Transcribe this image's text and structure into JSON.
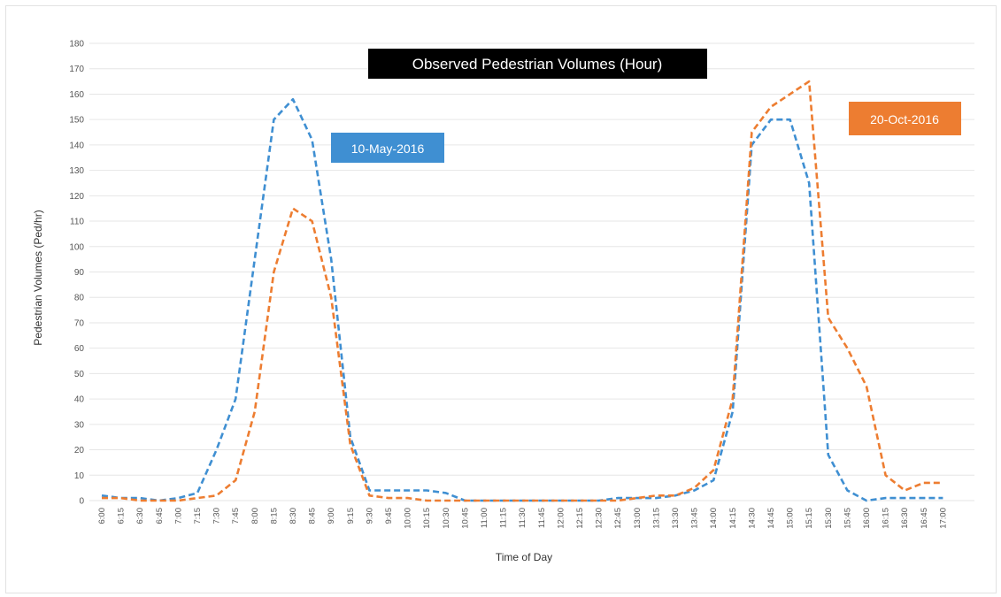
{
  "chart_data": {
    "type": "line",
    "title": "Observed Pedestrian Volumes (Hour)",
    "xlabel": "Time of Day",
    "ylabel": "Pedestrian Volumes (Ped/hr)",
    "ylim": [
      0,
      180
    ],
    "yticks": [
      0,
      10,
      20,
      30,
      40,
      50,
      60,
      70,
      80,
      90,
      100,
      110,
      120,
      130,
      140,
      150,
      160,
      170,
      180
    ],
    "grid": true,
    "line_style": "dashed",
    "categories": [
      "6:00",
      "6:15",
      "6:30",
      "6:45",
      "7:00",
      "7:15",
      "7:30",
      "7:45",
      "8:00",
      "8:15",
      "8:30",
      "8:45",
      "9:00",
      "9:15",
      "9:30",
      "9:45",
      "10:00",
      "10:15",
      "10:30",
      "10:45",
      "11:00",
      "11:15",
      "11:30",
      "11:45",
      "12:00",
      "12:15",
      "12:30",
      "12:45",
      "13:00",
      "13:15",
      "13:30",
      "13:45",
      "14:00",
      "14:15",
      "14:30",
      "14:45",
      "15:00",
      "15:15",
      "15:30",
      "15:45",
      "16:00",
      "16:15",
      "16:30",
      "16:45",
      "17:00"
    ],
    "series": [
      {
        "name": "10-May-2016",
        "color": "#3f8fd2",
        "values": [
          2,
          1,
          1,
          0,
          1,
          3,
          20,
          40,
          95,
          150,
          158,
          142,
          95,
          25,
          4,
          4,
          4,
          4,
          3,
          0,
          0,
          0,
          0,
          0,
          0,
          0,
          0,
          1,
          1,
          1,
          2,
          4,
          8,
          35,
          140,
          150,
          150,
          125,
          18,
          4,
          0,
          1,
          1,
          1,
          1
        ]
      },
      {
        "name": "20-Oct-2016",
        "color": "#ed7d31",
        "values": [
          1,
          1,
          0,
          0,
          0,
          1,
          2,
          8,
          35,
          90,
          115,
          110,
          80,
          22,
          2,
          1,
          1,
          0,
          0,
          0,
          0,
          0,
          0,
          0,
          0,
          0,
          0,
          0,
          1,
          2,
          2,
          5,
          12,
          40,
          145,
          155,
          160,
          165,
          72,
          60,
          45,
          10,
          4,
          7,
          7
        ]
      }
    ],
    "legend": [
      {
        "label": "10-May-2016",
        "placement": "upper-left",
        "color": "#3f8fd2"
      },
      {
        "label": "20-Oct-2016",
        "placement": "upper-right",
        "color": "#ed7d31"
      }
    ]
  }
}
